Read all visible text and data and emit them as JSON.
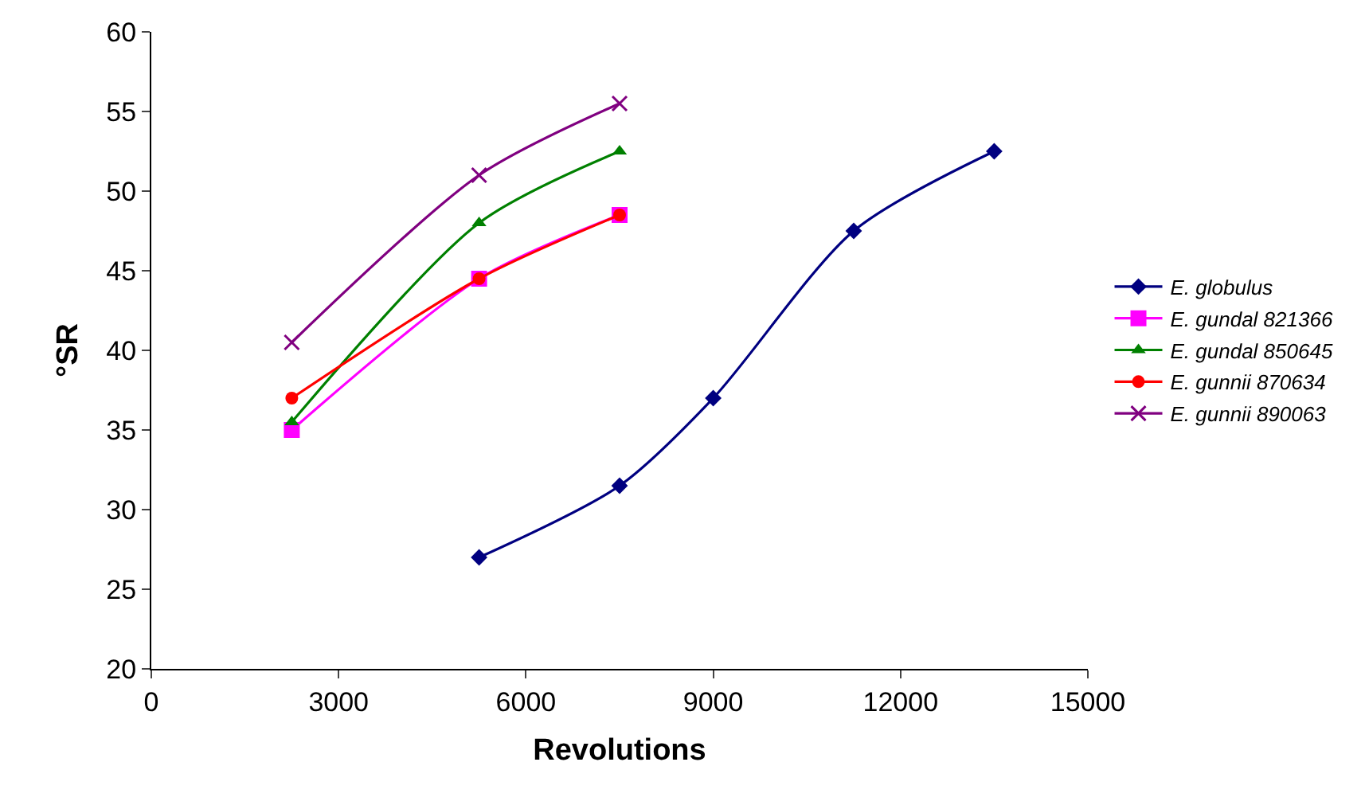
{
  "chart_data": {
    "type": "line",
    "xlabel": "Revolutions",
    "ylabel": "°SR",
    "xlim": [
      0,
      15000
    ],
    "xticks": [
      0,
      3000,
      6000,
      9000,
      12000,
      15000
    ],
    "ylim": [
      20,
      60
    ],
    "yticks": [
      20,
      25,
      30,
      35,
      40,
      45,
      50,
      55,
      60
    ],
    "grid": false,
    "legend": "right",
    "line_style": "solid",
    "series": [
      {
        "name": "E. globulus",
        "color": "#000080",
        "marker": "diamond",
        "x": [
          5250,
          7500,
          9000,
          11250,
          13500
        ],
        "values": [
          27,
          31.5,
          37,
          47.5,
          52.5
        ]
      },
      {
        "name": "E. gundal 821366",
        "color": "#ff00ff",
        "marker": "square",
        "x": [
          2250,
          5250,
          7500
        ],
        "values": [
          35,
          44.5,
          48.5
        ]
      },
      {
        "name": "E. gundal 850645",
        "color": "#008000",
        "marker": "triangle",
        "x": [
          2250,
          5250,
          7500
        ],
        "values": [
          35.5,
          48,
          52.5
        ]
      },
      {
        "name": "E. gunnii 870634",
        "color": "#ff0000",
        "marker": "circle",
        "x": [
          2250,
          5250,
          7500
        ],
        "values": [
          37,
          44.5,
          48.5
        ]
      },
      {
        "name": "E. gunnii 890063",
        "color": "#800080",
        "marker": "cross",
        "x": [
          2250,
          5250,
          7500
        ],
        "values": [
          40.5,
          51,
          55.5
        ]
      }
    ]
  }
}
